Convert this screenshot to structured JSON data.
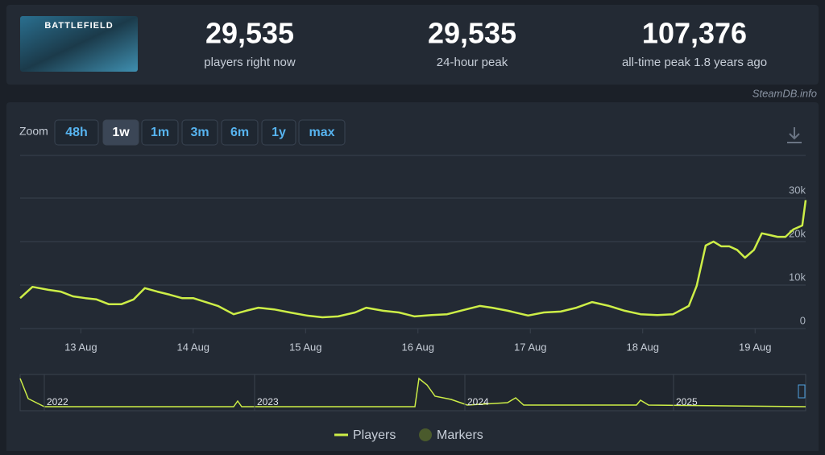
{
  "header": {
    "image_text": "BATTLEFIELD",
    "stats": [
      {
        "value": "29,535",
        "label": "players right now"
      },
      {
        "value": "29,535",
        "label": "24-hour peak"
      },
      {
        "value": "107,376",
        "label": "all-time peak 1.8 years ago"
      }
    ],
    "source": "SteamDB.info"
  },
  "zoom": {
    "label": "Zoom",
    "buttons": [
      "48h",
      "1w",
      "1m",
      "3m",
      "6m",
      "1y",
      "max"
    ],
    "active": 1
  },
  "chart_data": {
    "type": "line",
    "color": "#cdee47",
    "grid": true,
    "x": [
      12.46,
      12.57,
      12.71,
      12.82,
      12.93,
      13.04,
      13.14,
      13.25,
      13.36,
      13.47,
      13.57,
      13.68,
      13.79,
      13.9,
      14.0,
      14.11,
      14.22,
      14.36,
      14.47,
      14.58,
      14.72,
      14.86,
      15.01,
      15.15,
      15.29,
      15.44,
      15.54,
      15.69,
      15.83,
      15.97,
      16.12,
      16.26,
      16.41,
      16.55,
      16.66,
      16.8,
      16.98,
      17.12,
      17.27,
      17.41,
      17.55,
      17.7,
      17.84,
      17.98,
      18.13,
      18.27,
      18.41,
      18.48,
      18.56,
      18.63,
      18.7,
      18.77,
      18.84,
      18.91,
      18.99,
      19.06,
      19.13,
      19.2,
      19.27,
      19.34,
      19.42,
      19.45
    ],
    "series": [
      {
        "name": "Players",
        "color": "#cdee47",
        "values": [
          7000,
          9600,
          8900,
          8500,
          7400,
          7000,
          6700,
          5600,
          5600,
          6700,
          9300,
          8500,
          7800,
          7000,
          7000,
          6100,
          5200,
          3300,
          4100,
          4800,
          4400,
          3700,
          3000,
          2600,
          2800,
          3700,
          4800,
          4100,
          3700,
          2800,
          3100,
          3300,
          4300,
          5200,
          4800,
          4100,
          3000,
          3700,
          3900,
          4800,
          6100,
          5200,
          4100,
          3300,
          3100,
          3300,
          5200,
          9800,
          19100,
          20000,
          18900,
          18900,
          18100,
          16300,
          18100,
          21900,
          21500,
          21100,
          21100,
          22800,
          23700,
          29535
        ]
      }
    ],
    "markers_name": "Markers",
    "markers_color": "#4a5a2c",
    "xlim": [
      12.46,
      19.45
    ],
    "xticks": [
      {
        "value": 13,
        "label": "13 Aug"
      },
      {
        "value": 14,
        "label": "14 Aug"
      },
      {
        "value": 15,
        "label": "15 Aug"
      },
      {
        "value": 16,
        "label": "16 Aug"
      },
      {
        "value": 17,
        "label": "17 Aug"
      },
      {
        "value": 18,
        "label": "18 Aug"
      },
      {
        "value": 19,
        "label": "19 Aug"
      }
    ],
    "ylim": [
      0,
      40000
    ],
    "yticks": [
      0,
      {
        "value": 10000,
        "label": "10k"
      },
      {
        "value": 20000,
        "label": "20k"
      },
      {
        "value": 30000,
        "label": "30k"
      }
    ],
    "navigator_labels": [
      "2022",
      "2023",
      "2024",
      "2025"
    ]
  }
}
